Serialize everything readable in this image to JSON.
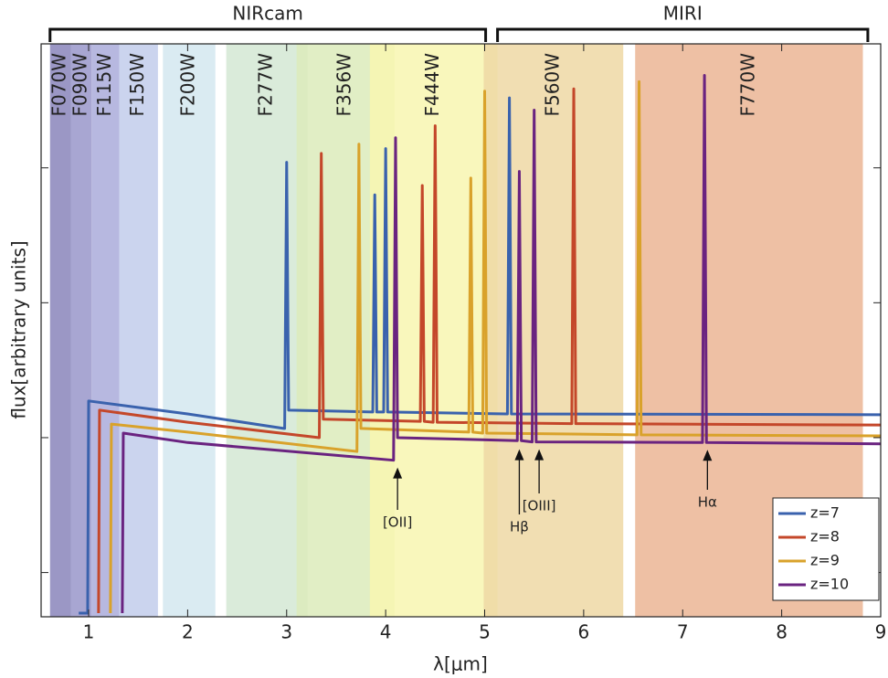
{
  "chart_data": {
    "type": "line",
    "xlabel": "λ[μm]",
    "ylabel": "flux[arbitrary units]",
    "xlim": [
      0.52,
      9
    ],
    "xticks": [
      1,
      2,
      3,
      4,
      5,
      6,
      7,
      8,
      9
    ],
    "ylim": [
      0.047,
      830
    ],
    "yticks": [
      0.1,
      1,
      10,
      100
    ],
    "ylog": true,
    "grid": false,
    "legend": "lower right",
    "instruments": [
      {
        "label": "NIRcam",
        "range": [
          0.61,
          5.01
        ]
      },
      {
        "label": "MIRI",
        "range": [
          5.13,
          8.87
        ]
      }
    ],
    "bands": [
      {
        "label": "F070W",
        "range": [
          0.61,
          0.82
        ],
        "color": "#8a85bb"
      },
      {
        "label": "F090W",
        "range": [
          0.82,
          1.03
        ],
        "color": "#9996ca"
      },
      {
        "label": "F115W",
        "range": [
          1.03,
          1.31
        ],
        "color": "#aaacdb"
      },
      {
        "label": "F150W",
        "range": [
          1.31,
          1.7
        ],
        "color": "#c2cdeb"
      },
      {
        "label": "F200W",
        "range": [
          1.75,
          2.28
        ],
        "color": "#d3e8f0"
      },
      {
        "label": "F277W",
        "range": [
          2.39,
          3.21
        ],
        "color": "#d4e7d3"
      },
      {
        "label": "F356W",
        "range": [
          3.1,
          4.09
        ],
        "color": "#dcebbb"
      },
      {
        "label": "F444W",
        "range": [
          3.84,
          5.13
        ],
        "color": "#f8f6b0"
      },
      {
        "label": "F560W",
        "range": [
          4.99,
          6.4
        ],
        "color": "#efd8a4"
      },
      {
        "label": "F770W",
        "range": [
          6.52,
          8.82
        ],
        "color": "#ebb594"
      }
    ],
    "annotations": [
      {
        "text": "[OII]",
        "x": 4.12,
        "y": 0.68
      },
      {
        "text": "Hβ",
        "x": 5.35,
        "y": 0.93
      },
      {
        "text": "[OIII]",
        "x": 5.55,
        "y": 0.93
      },
      {
        "text": "Hα",
        "x": 7.25,
        "y": 0.92
      }
    ],
    "series": [
      {
        "name": "z=7",
        "color": "#3a62ad",
        "x": [
          0.9,
          0.99,
          1.0,
          2.0,
          2.97,
          2.98,
          3.0,
          3.02,
          3.03,
          3.87,
          3.89,
          3.91,
          3.98,
          4.0,
          4.02,
          5.23,
          5.25,
          5.27,
          9
        ],
        "values": [
          0.05,
          0.05,
          1.87,
          1.5,
          1.17,
          1.17,
          110,
          1.6,
          1.6,
          1.55,
          63,
          1.55,
          1.55,
          139,
          1.55,
          1.5,
          330,
          1.5,
          1.48
        ]
      },
      {
        "name": "z=8",
        "color": "#c4472a",
        "x": [
          1.1,
          1.11,
          2.0,
          3.33,
          3.35,
          3.37,
          4.35,
          4.37,
          4.39,
          4.48,
          4.5,
          4.52,
          5.88,
          5.9,
          5.92,
          9
        ],
        "values": [
          0.05,
          1.6,
          1.3,
          1.0,
          128,
          1.37,
          1.32,
          74,
          1.32,
          1.3,
          205,
          1.3,
          1.27,
          385,
          1.27,
          1.24
        ]
      },
      {
        "name": "z=9",
        "color": "#d9a22b",
        "x": [
          1.22,
          1.23,
          2.0,
          3.71,
          3.73,
          3.75,
          4.84,
          4.86,
          4.88,
          4.98,
          5.0,
          5.02,
          6.54,
          6.56,
          6.58,
          9
        ],
        "values": [
          0.05,
          1.26,
          1.1,
          0.79,
          150,
          1.17,
          1.1,
          84,
          1.1,
          1.08,
          370,
          1.08,
          1.05,
          435,
          1.05,
          1.03
        ]
      },
      {
        "name": "z=10",
        "color": "#6a2380",
        "x": [
          1.34,
          1.35,
          2.0,
          4.08,
          4.1,
          4.12,
          5.33,
          5.35,
          5.37,
          5.48,
          5.5,
          5.52,
          7.2,
          7.22,
          7.24,
          9
        ],
        "values": [
          0.05,
          1.08,
          0.92,
          0.68,
          167,
          1.0,
          0.95,
          94,
          0.95,
          0.93,
          268,
          0.93,
          0.92,
          485,
          0.92,
          0.9
        ]
      }
    ]
  }
}
